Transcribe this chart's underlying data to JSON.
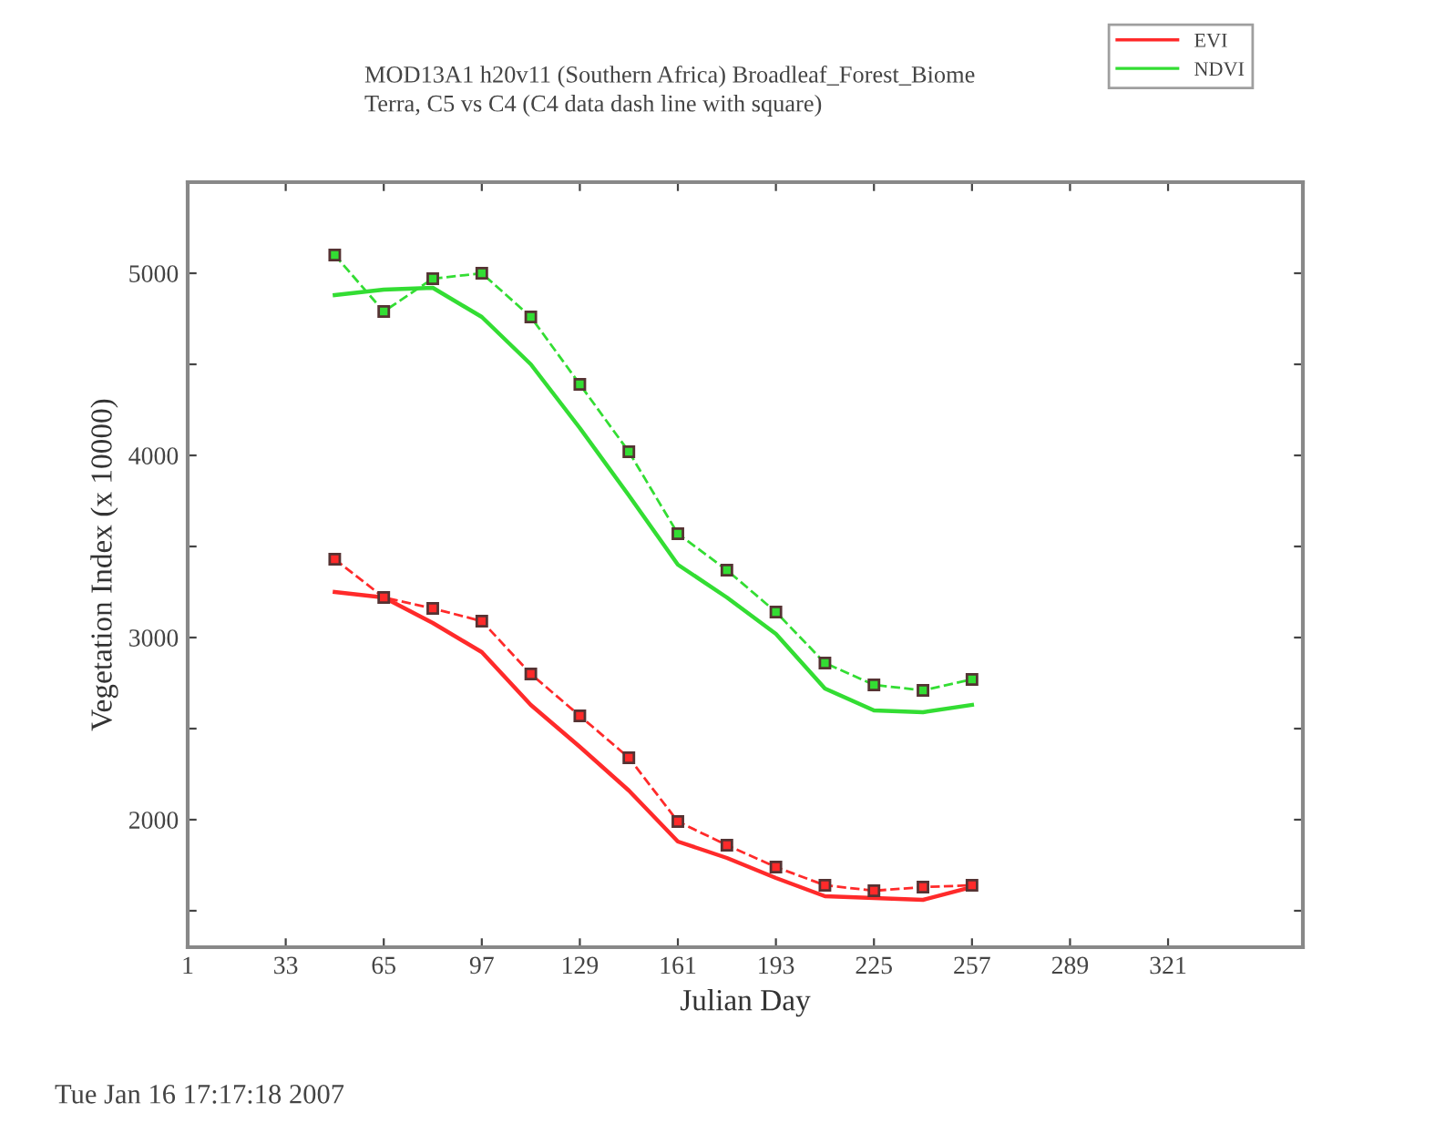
{
  "chart_data": {
    "type": "line",
    "title": "MOD13A1 h20v11 (Southern Africa) Broadleaf_Forest_Biome",
    "subtitle": "Terra, C5 vs C4 (C4 data dash line with square)",
    "xlabel": "Julian Day",
    "ylabel": "Vegetation Index (x 10000)",
    "x": [
      49,
      65,
      81,
      97,
      113,
      129,
      145,
      161,
      177,
      193,
      209,
      225,
      241,
      257
    ],
    "series": [
      {
        "name": "EVI",
        "color": "#ff2a2a",
        "line_style": "solid",
        "marker": "none",
        "values": [
          3250,
          3220,
          3080,
          2920,
          2630,
          2400,
          2160,
          1880,
          1790,
          1680,
          1580,
          1570,
          1560,
          1630
        ]
      },
      {
        "name": "NDVI",
        "color": "#33dd33",
        "line_style": "solid",
        "marker": "none",
        "values": [
          4880,
          4910,
          4920,
          4760,
          4500,
          4150,
          3780,
          3400,
          3220,
          3020,
          2720,
          2600,
          2590,
          2630
        ]
      },
      {
        "color": "#ff2a2a",
        "line_style": "dashed",
        "marker": "square",
        "values": [
          3430,
          3220,
          3160,
          3090,
          2800,
          2570,
          2340,
          1990,
          1860,
          1740,
          1640,
          1610,
          1630,
          1640
        ]
      },
      {
        "color": "#33dd33",
        "line_style": "dashed",
        "marker": "square",
        "values": [
          5100,
          4790,
          4970,
          5000,
          4760,
          4390,
          4020,
          3570,
          3370,
          3140,
          2860,
          2740,
          2710,
          2770
        ]
      }
    ],
    "xlim": [
      1,
      365
    ],
    "xticks": [
      1,
      33,
      65,
      97,
      129,
      161,
      193,
      225,
      257,
      289,
      321
    ],
    "ylim": [
      1300,
      5500
    ],
    "yticks": [
      {
        "value": 1500,
        "label": null
      },
      2000,
      {
        "value": 2500,
        "label": null
      },
      3000,
      {
        "value": 3500,
        "label": null
      },
      4000,
      {
        "value": 4500,
        "label": null
      },
      5000
    ],
    "grid": false,
    "legend": "top right",
    "annotations": [
      "Tue Jan 16 17:17:18 2007"
    ]
  }
}
